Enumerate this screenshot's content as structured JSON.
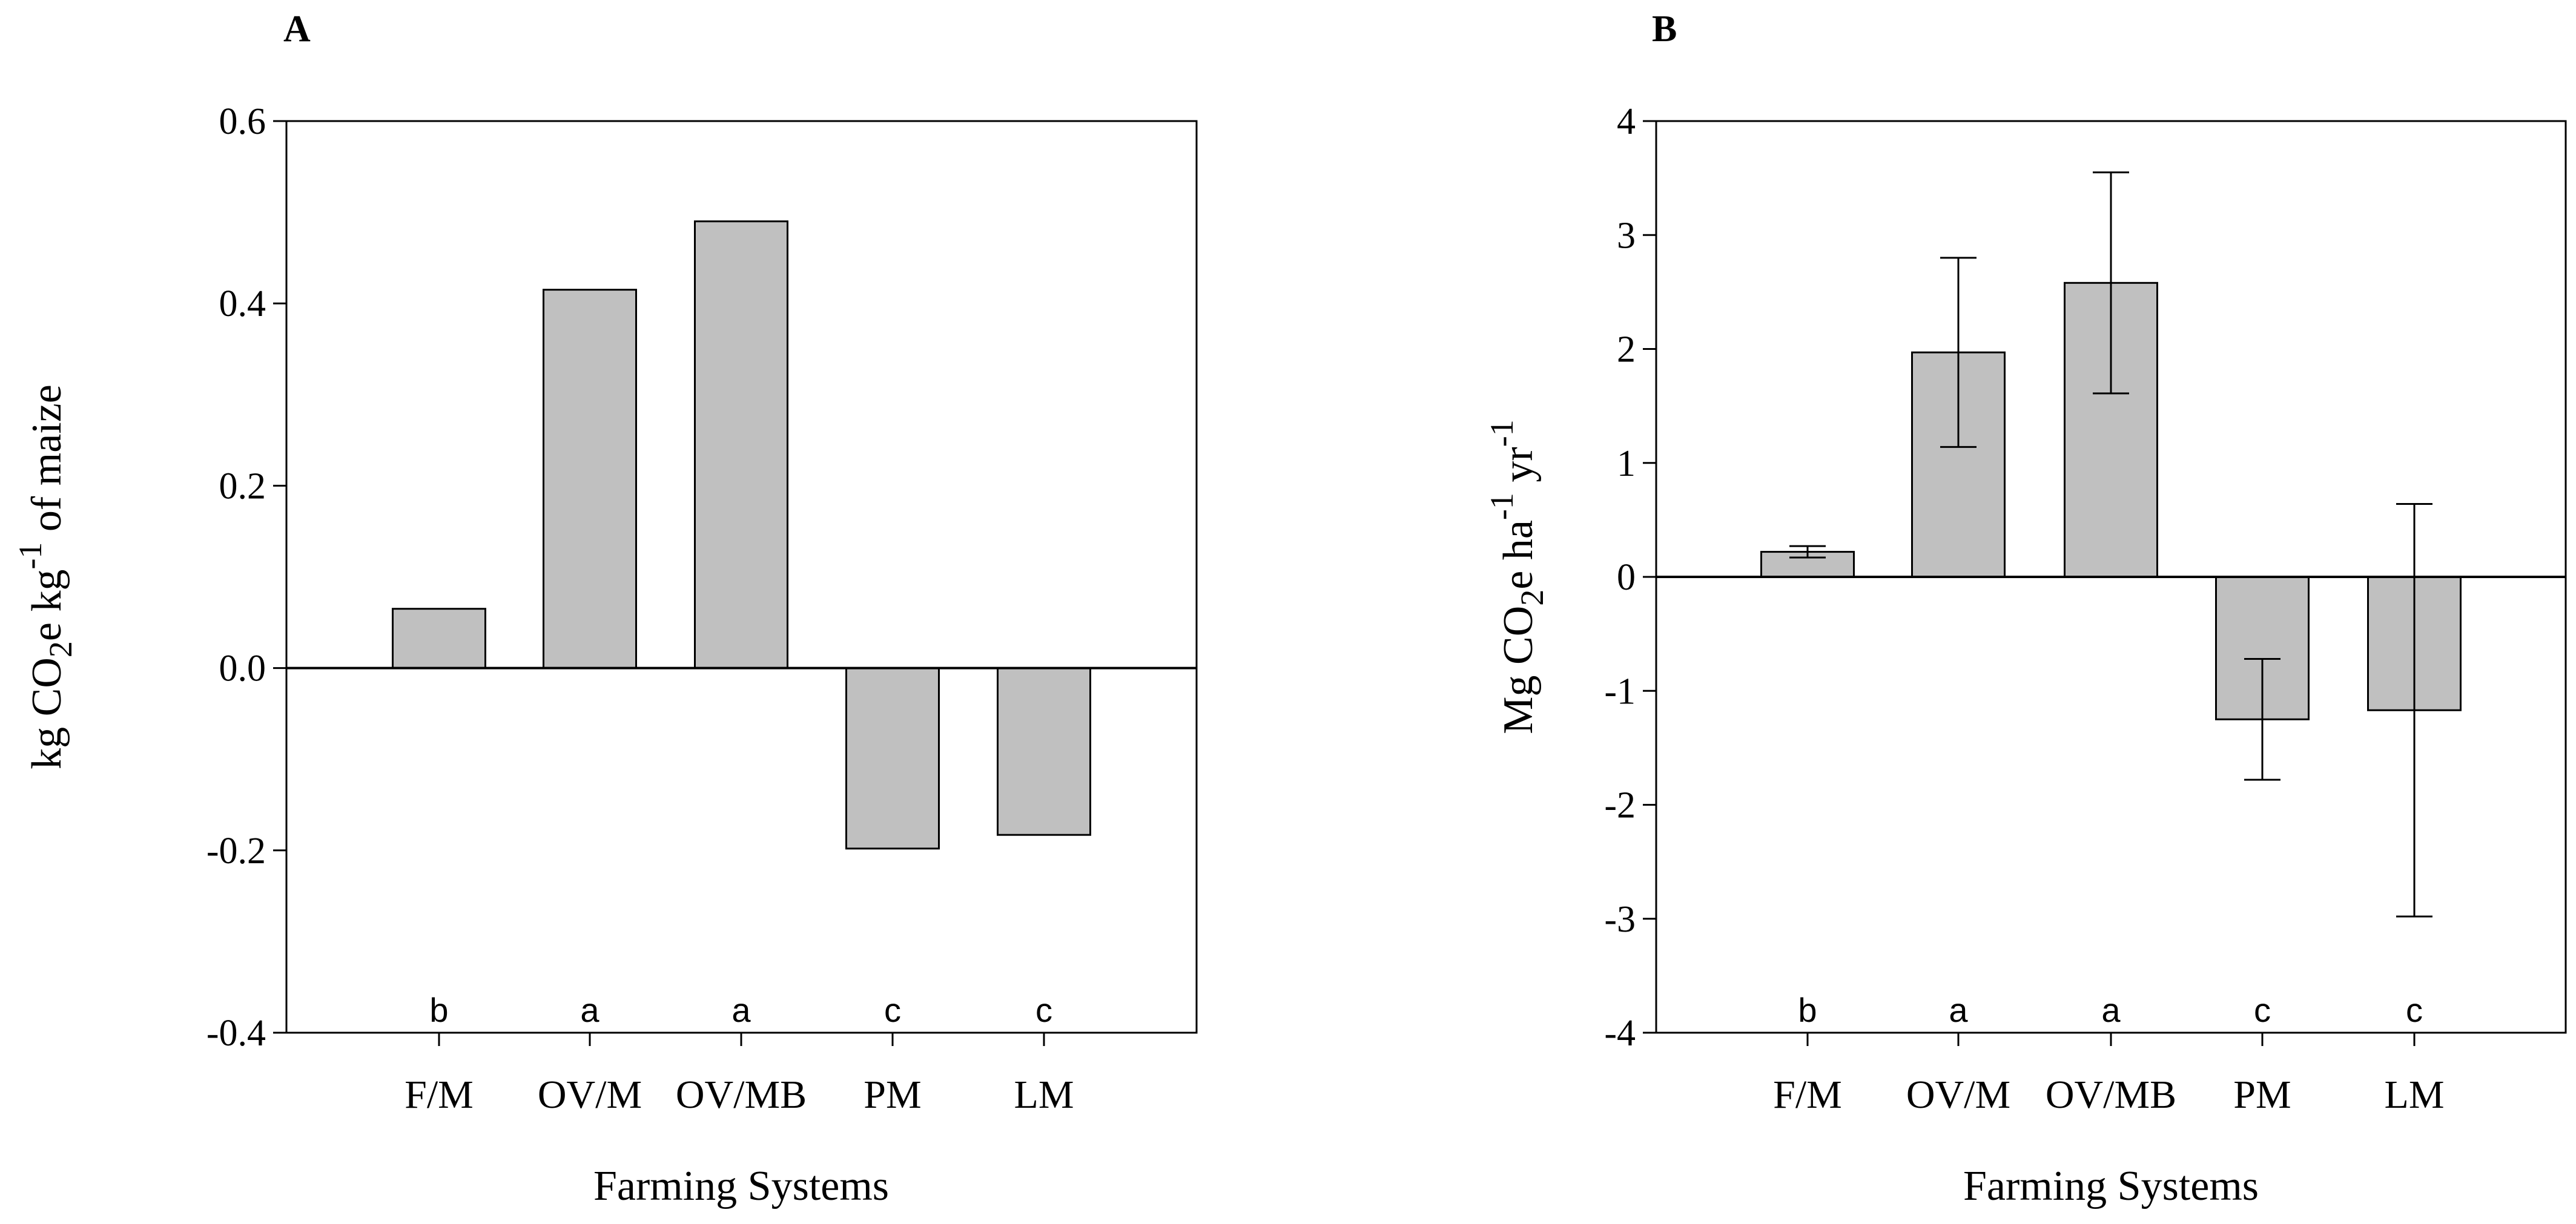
{
  "chart_data": [
    {
      "type": "bar",
      "panel_label": "A",
      "categories": [
        "F/M",
        "OV/M",
        "OV/MB",
        "PM",
        "LM"
      ],
      "values": [
        0.065,
        0.415,
        0.49,
        -0.198,
        -0.183
      ],
      "significance": [
        "b",
        "a",
        "a",
        "c",
        "c"
      ],
      "xlabel": "Farming Systems",
      "ylabel_parts": {
        "pre": "kg CO",
        "sub": "2",
        "mid": "e kg",
        "sup": "-1",
        "post": " of maize"
      },
      "ylim": [
        -0.4,
        0.6
      ],
      "yticks": [
        -0.4,
        -0.2,
        0.0,
        0.2,
        0.4,
        0.6
      ],
      "ytick_labels": [
        "-0.4",
        "-0.2",
        "0.0",
        "0.2",
        "0.4",
        "0.6"
      ],
      "bar_color": "#c0c0c0"
    },
    {
      "type": "bar",
      "panel_label": "B",
      "categories": [
        "F/M",
        "OV/M",
        "OV/MB",
        "PM",
        "LM"
      ],
      "values": [
        0.22,
        1.97,
        2.58,
        -1.25,
        -1.17
      ],
      "errors": [
        0.05,
        0.83,
        0.97,
        0.53,
        1.81
      ],
      "significance": [
        "b",
        "a",
        "a",
        "c",
        "c"
      ],
      "xlabel": "Farming Systems",
      "ylabel_parts": {
        "pre": "Mg CO",
        "sub": "2",
        "mid": "e ha",
        "sup": "-1",
        "post": " yr",
        "sup2": "-1"
      },
      "ylim": [
        -4,
        4
      ],
      "yticks": [
        -4,
        -3,
        -2,
        -1,
        0,
        1,
        2,
        3,
        4
      ],
      "ytick_labels": [
        "-4",
        "-3",
        "-2",
        "-1",
        "0",
        "1",
        "2",
        "3",
        "4"
      ],
      "bar_color": "#c0c0c0"
    }
  ]
}
